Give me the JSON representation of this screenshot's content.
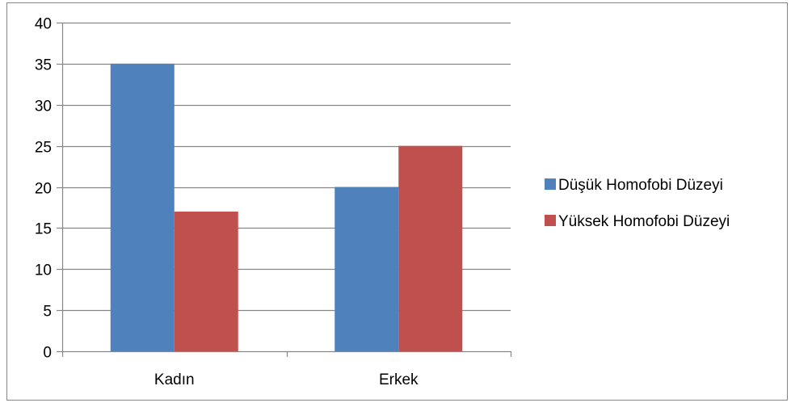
{
  "chart_data": {
    "type": "bar",
    "title": "",
    "xlabel": "",
    "ylabel": "",
    "categories": [
      "Kadın",
      "Erkek"
    ],
    "series": [
      {
        "name": "Düşük Homofobi Düzeyi",
        "values": [
          35,
          20
        ],
        "color": "#4f81bd"
      },
      {
        "name": "Yüksek Homofobi Düzeyi",
        "values": [
          17,
          25
        ],
        "color": "#c0504d"
      }
    ],
    "ylim": [
      0,
      40
    ],
    "yticks": [
      0,
      5,
      10,
      15,
      20,
      25,
      30,
      35,
      40
    ],
    "grid": true,
    "legend": "right",
    "axis_color": "#868686",
    "grid_color": "#868686"
  }
}
